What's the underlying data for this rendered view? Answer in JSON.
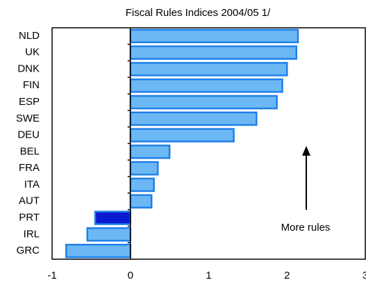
{
  "chart_data": {
    "type": "hbar",
    "title": "Fiscal Rules Indices 2004/05   1/",
    "categories": [
      "NLD",
      "UK",
      "DNK",
      "FIN",
      "ESP",
      "SWE",
      "DEU",
      "BEL",
      "FRA",
      "ITA",
      "AUT",
      "PRT",
      "IRL",
      "GRC"
    ],
    "values": [
      2.14,
      2.12,
      2.0,
      1.94,
      1.87,
      1.61,
      1.32,
      0.5,
      0.35,
      0.3,
      0.27,
      -0.45,
      -0.55,
      -0.82
    ],
    "colors": [
      "#6cb8f4",
      "#6cb8f4",
      "#6cb8f4",
      "#6cb8f4",
      "#6cb8f4",
      "#6cb8f4",
      "#6cb8f4",
      "#6cb8f4",
      "#6cb8f4",
      "#6cb8f4",
      "#6cb8f4",
      "#0a1ad0",
      "#6cb8f4",
      "#6cb8f4"
    ],
    "edge_color": "#1f80e8",
    "xlim": [
      -1,
      3
    ],
    "xticks": [
      -1,
      0,
      1,
      2,
      3
    ],
    "annotation": "More rules"
  }
}
